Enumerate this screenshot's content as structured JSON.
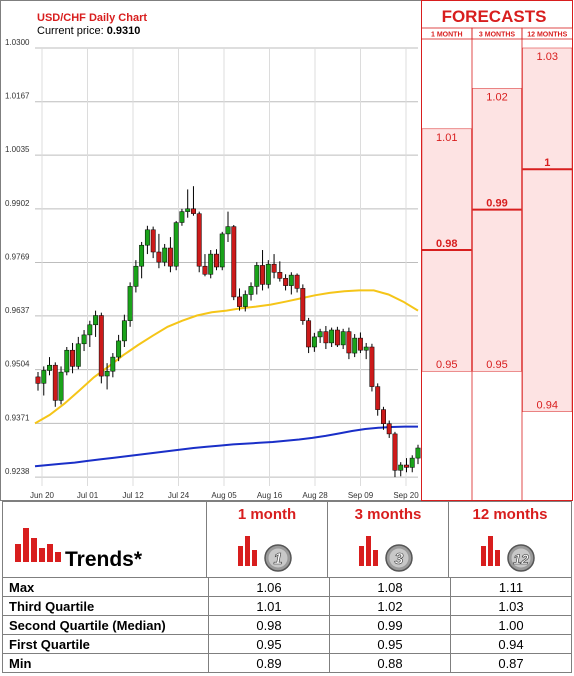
{
  "chart_data": {
    "type": "candlestick",
    "title": "USD/CHF Daily Chart",
    "price_label": "Current price:",
    "current_price": "0.9310",
    "y_ticks": [
      "1.0300",
      "1.0167",
      "1.0035",
      "0.9902",
      "0.9769",
      "0.9637",
      "0.9504",
      "0.9371",
      "0.9238"
    ],
    "ylim": [
      0.9216,
      1.03
    ],
    "x_ticks": [
      "Jun 20",
      "Jul 01",
      "Jul 12",
      "Jul 24",
      "Aug 05",
      "Aug 16",
      "Aug 28",
      "Sep 09",
      "Sep 20"
    ],
    "up_color": "#1aa31a",
    "down_color": "#cc1a1a",
    "candles": [
      {
        "o": 0.9486,
        "h": 0.9498,
        "l": 0.9452,
        "c": 0.947
      },
      {
        "o": 0.947,
        "h": 0.9512,
        "l": 0.944,
        "c": 0.9502
      },
      {
        "o": 0.9502,
        "h": 0.9535,
        "l": 0.949,
        "c": 0.9515
      },
      {
        "o": 0.9515,
        "h": 0.9522,
        "l": 0.9412,
        "c": 0.9428
      },
      {
        "o": 0.9428,
        "h": 0.9512,
        "l": 0.9418,
        "c": 0.9498
      },
      {
        "o": 0.9498,
        "h": 0.956,
        "l": 0.949,
        "c": 0.9552
      },
      {
        "o": 0.9552,
        "h": 0.957,
        "l": 0.9495,
        "c": 0.9512
      },
      {
        "o": 0.9512,
        "h": 0.9585,
        "l": 0.9505,
        "c": 0.9568
      },
      {
        "o": 0.9568,
        "h": 0.9602,
        "l": 0.955,
        "c": 0.959
      },
      {
        "o": 0.959,
        "h": 0.9625,
        "l": 0.956,
        "c": 0.9615
      },
      {
        "o": 0.9615,
        "h": 0.965,
        "l": 0.9585,
        "c": 0.9638
      },
      {
        "o": 0.9638,
        "h": 0.9645,
        "l": 0.947,
        "c": 0.9488
      },
      {
        "o": 0.9488,
        "h": 0.952,
        "l": 0.9455,
        "c": 0.95
      },
      {
        "o": 0.95,
        "h": 0.9545,
        "l": 0.9485,
        "c": 0.9535
      },
      {
        "o": 0.9535,
        "h": 0.959,
        "l": 0.9525,
        "c": 0.9575
      },
      {
        "o": 0.9575,
        "h": 0.964,
        "l": 0.956,
        "c": 0.9625
      },
      {
        "o": 0.9625,
        "h": 0.972,
        "l": 0.961,
        "c": 0.971
      },
      {
        "o": 0.971,
        "h": 0.9775,
        "l": 0.9695,
        "c": 0.976
      },
      {
        "o": 0.976,
        "h": 0.982,
        "l": 0.973,
        "c": 0.9812
      },
      {
        "o": 0.9812,
        "h": 0.986,
        "l": 0.979,
        "c": 0.985
      },
      {
        "o": 0.985,
        "h": 0.9858,
        "l": 0.978,
        "c": 0.9795
      },
      {
        "o": 0.9795,
        "h": 0.984,
        "l": 0.9755,
        "c": 0.977
      },
      {
        "o": 0.977,
        "h": 0.9815,
        "l": 0.976,
        "c": 0.9805
      },
      {
        "o": 0.9805,
        "h": 0.9832,
        "l": 0.9745,
        "c": 0.976
      },
      {
        "o": 0.976,
        "h": 0.9872,
        "l": 0.975,
        "c": 0.9868
      },
      {
        "o": 0.9868,
        "h": 0.9902,
        "l": 0.986,
        "c": 0.9895
      },
      {
        "o": 0.9895,
        "h": 0.995,
        "l": 0.988,
        "c": 0.9902
      },
      {
        "o": 0.9902,
        "h": 0.9958,
        "l": 0.9885,
        "c": 0.989
      },
      {
        "o": 0.989,
        "h": 0.9895,
        "l": 0.9745,
        "c": 0.976
      },
      {
        "o": 0.976,
        "h": 0.979,
        "l": 0.9735,
        "c": 0.974
      },
      {
        "o": 0.974,
        "h": 0.98,
        "l": 0.973,
        "c": 0.979
      },
      {
        "o": 0.979,
        "h": 0.9802,
        "l": 0.975,
        "c": 0.9758
      },
      {
        "o": 0.9758,
        "h": 0.9845,
        "l": 0.975,
        "c": 0.984
      },
      {
        "o": 0.984,
        "h": 0.9895,
        "l": 0.982,
        "c": 0.9858
      },
      {
        "o": 0.9858,
        "h": 0.9862,
        "l": 0.9676,
        "c": 0.9684
      },
      {
        "o": 0.9684,
        "h": 0.9705,
        "l": 0.965,
        "c": 0.966
      },
      {
        "o": 0.966,
        "h": 0.97,
        "l": 0.9648,
        "c": 0.969
      },
      {
        "o": 0.969,
        "h": 0.972,
        "l": 0.9675,
        "c": 0.971
      },
      {
        "o": 0.971,
        "h": 0.977,
        "l": 0.969,
        "c": 0.9762
      },
      {
        "o": 0.9762,
        "h": 0.98,
        "l": 0.97,
        "c": 0.9715
      },
      {
        "o": 0.9715,
        "h": 0.9775,
        "l": 0.9705,
        "c": 0.9765
      },
      {
        "o": 0.9765,
        "h": 0.979,
        "l": 0.973,
        "c": 0.9745
      },
      {
        "o": 0.9745,
        "h": 0.9772,
        "l": 0.9722,
        "c": 0.973
      },
      {
        "o": 0.973,
        "h": 0.974,
        "l": 0.97,
        "c": 0.9712
      },
      {
        "o": 0.9712,
        "h": 0.9745,
        "l": 0.969,
        "c": 0.9738
      },
      {
        "o": 0.9738,
        "h": 0.9742,
        "l": 0.9695,
        "c": 0.9705
      },
      {
        "o": 0.9705,
        "h": 0.9715,
        "l": 0.9615,
        "c": 0.9625
      },
      {
        "o": 0.9625,
        "h": 0.9632,
        "l": 0.9545,
        "c": 0.956
      },
      {
        "o": 0.956,
        "h": 0.9595,
        "l": 0.9548,
        "c": 0.9585
      },
      {
        "o": 0.9585,
        "h": 0.9605,
        "l": 0.957,
        "c": 0.9598
      },
      {
        "o": 0.9598,
        "h": 0.9612,
        "l": 0.9555,
        "c": 0.957
      },
      {
        "o": 0.957,
        "h": 0.9608,
        "l": 0.956,
        "c": 0.9602
      },
      {
        "o": 0.9602,
        "h": 0.961,
        "l": 0.956,
        "c": 0.9565
      },
      {
        "o": 0.9565,
        "h": 0.9605,
        "l": 0.9555,
        "c": 0.9598
      },
      {
        "o": 0.9598,
        "h": 0.9608,
        "l": 0.953,
        "c": 0.9545
      },
      {
        "o": 0.9545,
        "h": 0.9592,
        "l": 0.9535,
        "c": 0.9582
      },
      {
        "o": 0.9582,
        "h": 0.9596,
        "l": 0.9545,
        "c": 0.9552
      },
      {
        "o": 0.9552,
        "h": 0.957,
        "l": 0.953,
        "c": 0.956
      },
      {
        "o": 0.956,
        "h": 0.9568,
        "l": 0.945,
        "c": 0.9462
      },
      {
        "o": 0.9462,
        "h": 0.947,
        "l": 0.939,
        "c": 0.9405
      },
      {
        "o": 0.9405,
        "h": 0.9412,
        "l": 0.9355,
        "c": 0.937
      },
      {
        "o": 0.937,
        "h": 0.9378,
        "l": 0.9335,
        "c": 0.9345
      },
      {
        "o": 0.9345,
        "h": 0.935,
        "l": 0.9238,
        "c": 0.9255
      },
      {
        "o": 0.9255,
        "h": 0.9275,
        "l": 0.924,
        "c": 0.9268
      },
      {
        "o": 0.9268,
        "h": 0.9285,
        "l": 0.925,
        "c": 0.9262
      },
      {
        "o": 0.9262,
        "h": 0.9292,
        "l": 0.925,
        "c": 0.9285
      },
      {
        "o": 0.9285,
        "h": 0.9318,
        "l": 0.927,
        "c": 0.931
      }
    ],
    "ma_short": {
      "color": "#f5c518",
      "values": [
        0.9371,
        0.9392,
        0.942,
        0.9452,
        0.9485,
        0.9512,
        0.954,
        0.9565,
        0.9588,
        0.961,
        0.9625,
        0.9638,
        0.9646,
        0.965,
        0.9656,
        0.966,
        0.9665,
        0.9672,
        0.968,
        0.9688,
        0.9694,
        0.9698,
        0.97,
        0.97,
        0.969,
        0.9672,
        0.965
      ]
    },
    "ma_long": {
      "color": "#1a2fc8",
      "values": [
        0.9265,
        0.9268,
        0.9271,
        0.9274,
        0.9278,
        0.9282,
        0.9286,
        0.929,
        0.9294,
        0.9298,
        0.9302,
        0.9306,
        0.931,
        0.9313,
        0.9316,
        0.9319,
        0.9321,
        0.9323,
        0.9325,
        0.9328,
        0.9331,
        0.9335,
        0.934,
        0.9346,
        0.9352,
        0.9357,
        0.936,
        0.9362,
        0.9363,
        0.9363
      ]
    }
  },
  "forecasts": {
    "title": "FORECASTS",
    "columns": [
      {
        "label": "1 MONTH",
        "min": "0.95",
        "median": "0.98",
        "max": "1.01",
        "min_v": 0.95,
        "median_v": 0.98,
        "max_v": 1.01
      },
      {
        "label": "3 MONTHS",
        "min": "0.95",
        "median": "0.99",
        "max": "1.02",
        "min_v": 0.95,
        "median_v": 0.99,
        "max_v": 1.02
      },
      {
        "label": "12 MONTHS",
        "min": "0.94",
        "median": "1",
        "max": "1.03",
        "min_v": 0.94,
        "median_v": 1.0,
        "max_v": 1.03
      }
    ]
  },
  "trends": {
    "title": "Trends*",
    "periods": [
      {
        "label": "1 month",
        "badge": "1"
      },
      {
        "label": "3 months",
        "badge": "3"
      },
      {
        "label": "12 months",
        "badge": "12"
      }
    ],
    "rows": [
      {
        "label": "Max",
        "values": [
          "1.06",
          "1.08",
          "1.11"
        ]
      },
      {
        "label": "Third Quartile",
        "values": [
          "1.01",
          "1.02",
          "1.03"
        ]
      },
      {
        "label": "Second Quartile (Median)",
        "values": [
          "0.98",
          "0.99",
          "1.00"
        ]
      },
      {
        "label": "First Quartile",
        "values": [
          "0.95",
          "0.95",
          "0.94"
        ]
      },
      {
        "label": "Min",
        "values": [
          "0.89",
          "0.88",
          "0.87"
        ]
      }
    ]
  },
  "colors": {
    "accent_red": "#d81e1e",
    "forecast_fill": "#fde3e3",
    "border": "#7f7f7f"
  }
}
